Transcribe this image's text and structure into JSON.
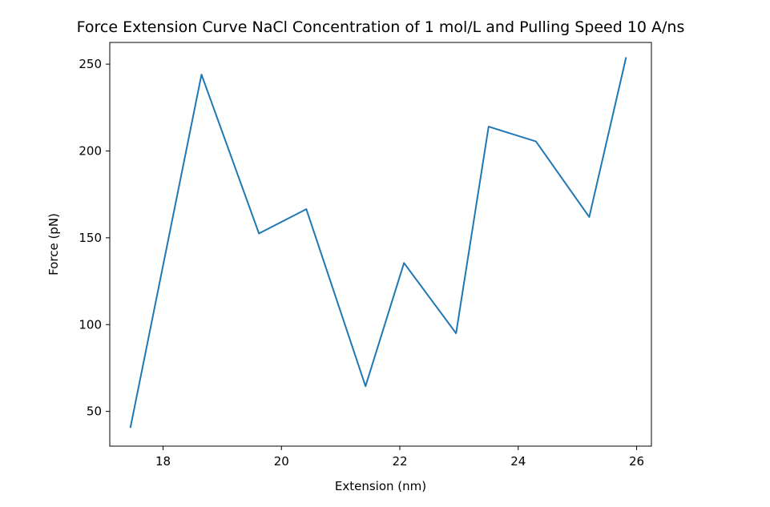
{
  "chart_data": {
    "type": "line",
    "title": "Force Extension Curve NaCl Concentration of 1 mol/L and Pulling Speed 10 A/ns",
    "xlabel": "Extension (nm)",
    "ylabel": "Force (pN)",
    "xlim": [
      17.1,
      26.25
    ],
    "ylim": [
      30,
      262.5
    ],
    "xticks": [
      18,
      20,
      22,
      24,
      26
    ],
    "yticks": [
      50,
      100,
      150,
      200,
      250
    ],
    "grid": false,
    "line_color": "#1f77b4",
    "series": [
      {
        "x": [
          17.45,
          18.65,
          19.62,
          20.42,
          21.42,
          22.07,
          22.95,
          23.5,
          24.3,
          25.2,
          25.82
        ],
        "y": [
          41,
          244,
          152.5,
          166.5,
          64.5,
          135.5,
          95,
          214,
          205.5,
          162,
          253.5
        ]
      }
    ]
  }
}
